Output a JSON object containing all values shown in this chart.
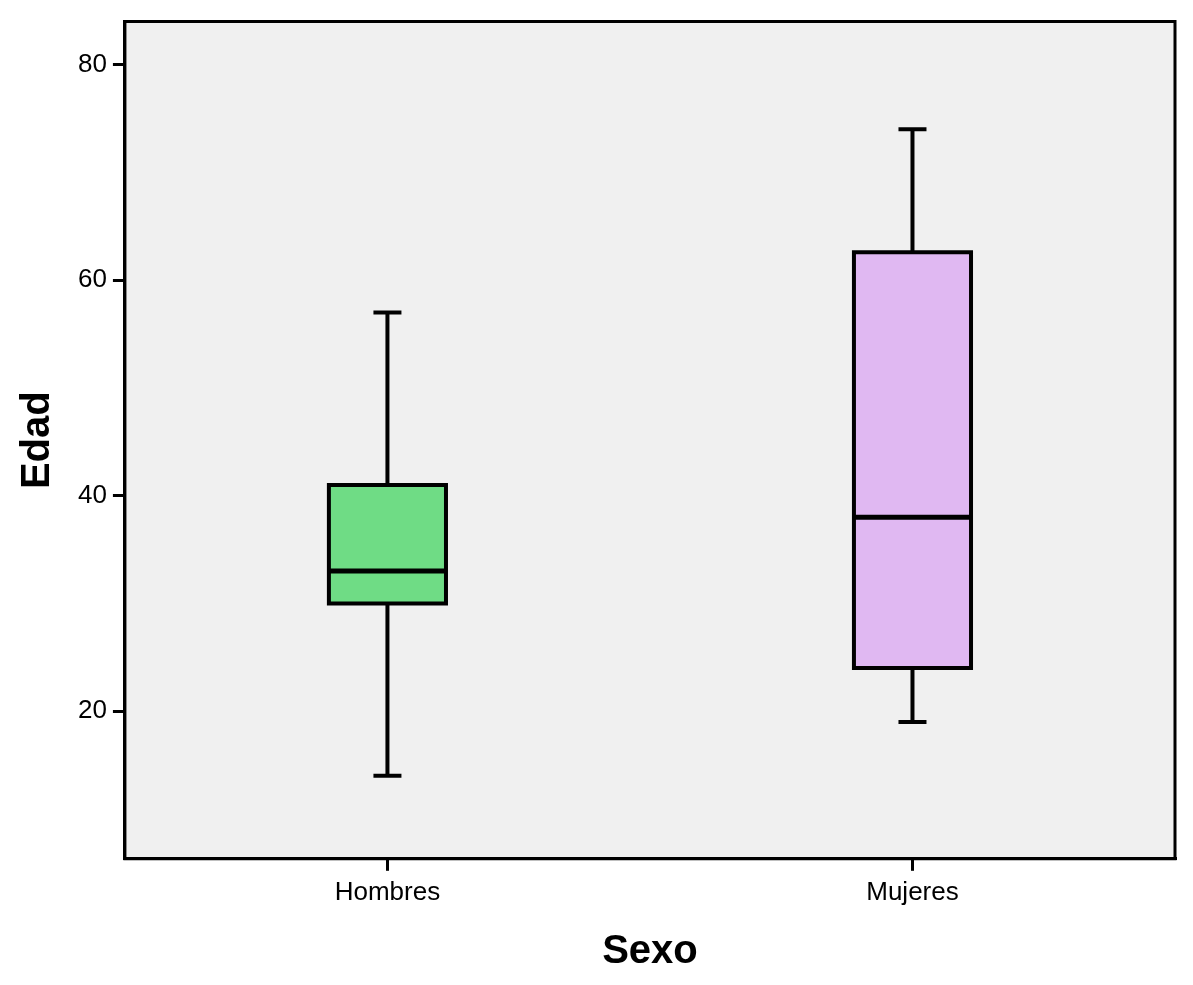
{
  "chart_data": {
    "type": "box",
    "xlabel": "Sexo",
    "ylabel": "Edad",
    "categories": [
      "Hombres",
      "Mujeres"
    ],
    "colors": [
      "#6fdc85",
      "#e0b8f2"
    ],
    "boxes": [
      {
        "low": 14,
        "q1": 30,
        "median": 33,
        "q3": 41,
        "high": 57
      },
      {
        "low": 19,
        "q1": 24,
        "median": 38,
        "q3": 62.6,
        "high": 74
      }
    ],
    "ylim": [
      6.3,
      84
    ],
    "yticks": [
      20,
      40,
      60,
      80
    ]
  }
}
